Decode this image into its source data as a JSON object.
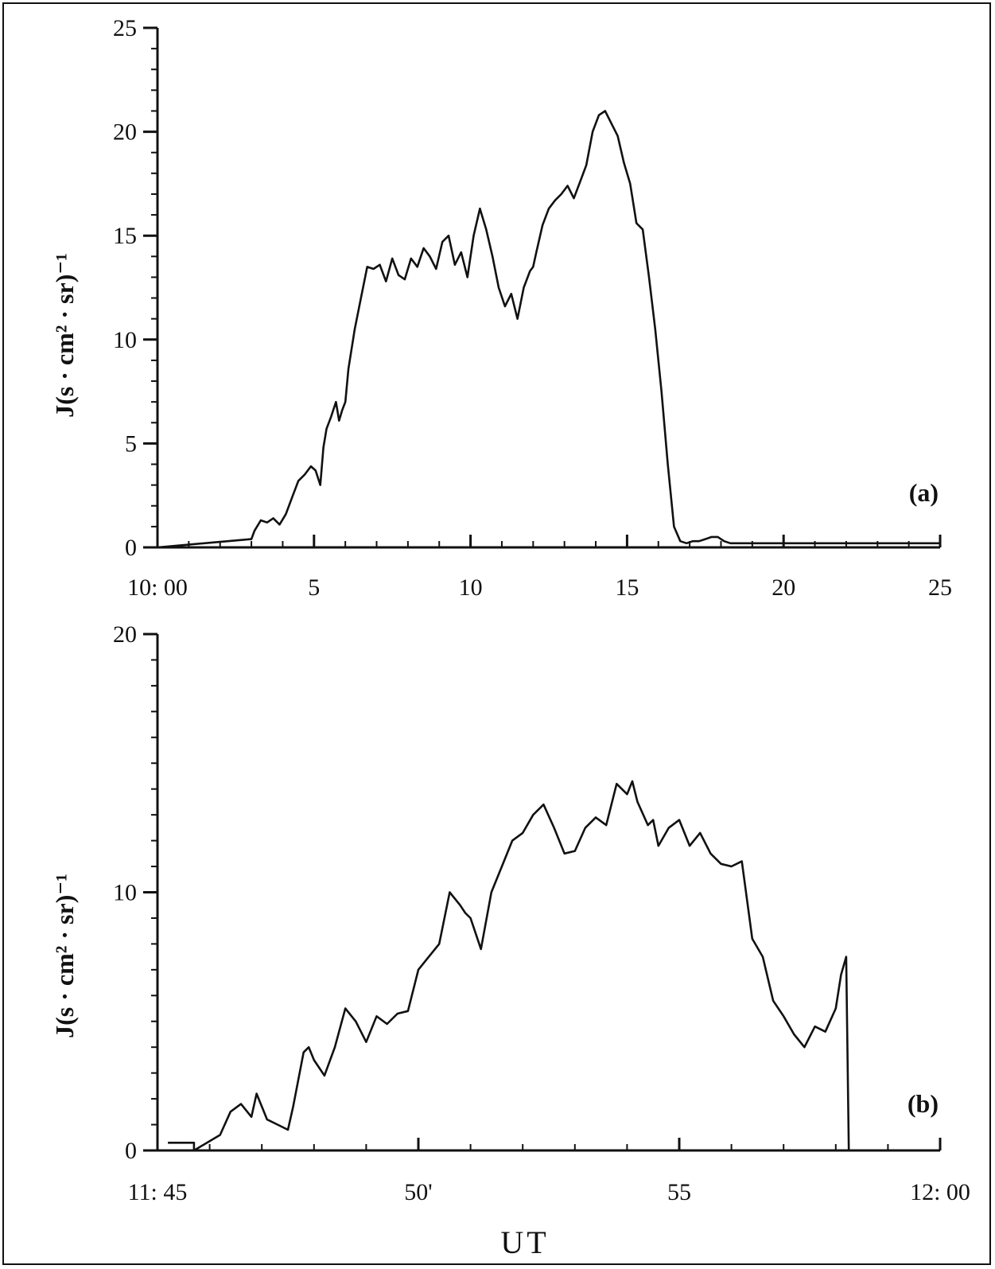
{
  "chart_data": [
    {
      "id": "a",
      "type": "line",
      "panel_label": "(a)",
      "ylabel": "J(s · cm² · sr)⁻¹",
      "xlabel": "",
      "xlim": [
        0,
        25
      ],
      "ylim": [
        0,
        25
      ],
      "x_ticks": [
        {
          "value": 0,
          "label": "10: 00"
        },
        {
          "value": 5,
          "label": "5"
        },
        {
          "value": 10,
          "label": "10"
        },
        {
          "value": 15,
          "label": "15"
        },
        {
          "value": 20,
          "label": "20"
        },
        {
          "value": 25,
          "label": "25"
        }
      ],
      "y_ticks": [
        {
          "value": 0,
          "label": "0"
        },
        {
          "value": 5,
          "label": "5"
        },
        {
          "value": 10,
          "label": "10"
        },
        {
          "value": 15,
          "label": "15"
        },
        {
          "value": 20,
          "label": "20"
        },
        {
          "value": 25,
          "label": "25"
        }
      ],
      "x_minor_step": 1,
      "y_minor_step": 1,
      "series": [
        {
          "x": [
            0,
            3.0,
            3.1,
            3.3,
            3.5,
            3.7,
            3.9,
            4.1,
            4.3,
            4.5,
            4.7,
            4.9,
            5.05,
            5.2,
            5.3,
            5.4,
            5.55,
            5.7,
            5.8,
            5.9,
            6.0,
            6.1,
            6.3,
            6.5,
            6.7,
            6.9,
            7.1,
            7.3,
            7.5,
            7.7,
            7.9,
            8.1,
            8.3,
            8.5,
            8.7,
            8.9,
            9.1,
            9.3,
            9.5,
            9.7,
            9.9,
            10.1,
            10.3,
            10.5,
            10.7,
            10.9,
            11.1,
            11.3,
            11.5,
            11.7,
            11.9,
            12.0,
            12.1,
            12.3,
            12.5,
            12.7,
            12.9,
            13.1,
            13.3,
            13.5,
            13.7,
            13.9,
            14.1,
            14.3,
            14.5,
            14.7,
            14.9,
            15.1,
            15.3,
            15.5,
            15.7,
            15.9,
            16.1,
            16.3,
            16.5,
            16.7,
            16.9,
            17.1,
            17.3,
            17.5,
            17.7,
            17.9,
            18.1,
            18.3,
            18.5,
            18.7,
            18.9,
            19.1,
            19.3,
            19.5,
            20.0,
            22.0,
            25.0
          ],
          "y": [
            0,
            0.4,
            0.8,
            1.3,
            1.2,
            1.4,
            1.1,
            1.6,
            2.4,
            3.2,
            3.5,
            3.9,
            3.7,
            3.0,
            4.8,
            5.7,
            6.3,
            7.0,
            6.1,
            6.6,
            7.0,
            8.6,
            10.5,
            12.0,
            13.5,
            13.4,
            13.6,
            12.8,
            13.9,
            13.1,
            12.9,
            13.9,
            13.5,
            14.4,
            14.0,
            13.4,
            14.7,
            15.0,
            13.6,
            14.2,
            13.0,
            15.0,
            16.3,
            15.3,
            14.0,
            12.5,
            11.6,
            12.2,
            11.0,
            12.5,
            13.3,
            13.5,
            14.2,
            15.5,
            16.3,
            16.7,
            17.0,
            17.4,
            16.8,
            17.6,
            18.4,
            20.0,
            20.8,
            21.0,
            20.4,
            19.8,
            18.5,
            17.5,
            15.6,
            15.3,
            13.0,
            10.5,
            7.5,
            4.0,
            1.0,
            0.3,
            0.2,
            0.3,
            0.3,
            0.4,
            0.5,
            0.5,
            0.3,
            0.2,
            0.2,
            0.2,
            0.2,
            0.2,
            0.2,
            0.2,
            0.2,
            0.2,
            0.2
          ]
        }
      ]
    },
    {
      "id": "b",
      "type": "line",
      "panel_label": "(b)",
      "ylabel": "J(s · cm² · sr)⁻¹",
      "xlabel": "UT",
      "xlim": [
        45,
        60
      ],
      "ylim": [
        0,
        20
      ],
      "x_ticks": [
        {
          "value": 45,
          "label": "11: 45"
        },
        {
          "value": 50,
          "label": "50'"
        },
        {
          "value": 55,
          "label": "55"
        },
        {
          "value": 60,
          "label": "12: 00"
        }
      ],
      "y_ticks": [
        {
          "value": 0,
          "label": "0"
        },
        {
          "value": 10,
          "label": "10"
        },
        {
          "value": 20,
          "label": "20"
        }
      ],
      "x_minor_step": 1,
      "y_minor_step": 1,
      "series": [
        {
          "x": [
            45.2,
            45.7,
            45.7,
            46.2,
            46.4,
            46.6,
            46.8,
            46.9,
            47.1,
            47.3,
            47.5,
            47.6,
            47.8,
            47.9,
            48.0,
            48.2,
            48.4,
            48.6,
            48.8,
            49.0,
            49.2,
            49.4,
            49.6,
            49.8,
            50.0,
            50.2,
            50.4,
            50.6,
            50.8,
            50.9,
            51.0,
            51.2,
            51.4,
            51.6,
            51.8,
            52.0,
            52.2,
            52.4,
            52.6,
            52.8,
            53.0,
            53.2,
            53.4,
            53.6,
            53.8,
            54.0,
            54.1,
            54.2,
            54.4,
            54.5,
            54.6,
            54.8,
            55.0,
            55.2,
            55.4,
            55.6,
            55.8,
            56.0,
            56.2,
            56.4,
            56.6,
            56.8,
            57.0,
            57.2,
            57.4,
            57.6,
            57.8,
            58.0,
            58.1,
            58.2,
            58.25
          ],
          "y": [
            0.3,
            0.3,
            0.0,
            0.6,
            1.5,
            1.8,
            1.3,
            2.2,
            1.2,
            1.0,
            0.8,
            1.7,
            3.8,
            4.0,
            3.5,
            2.9,
            4.0,
            5.5,
            5.0,
            4.2,
            5.2,
            4.9,
            5.3,
            5.4,
            7.0,
            7.5,
            8.0,
            10.0,
            9.5,
            9.2,
            9.0,
            7.8,
            10.0,
            11.0,
            12.0,
            12.3,
            13.0,
            13.4,
            12.5,
            11.5,
            11.6,
            12.5,
            12.9,
            12.6,
            14.2,
            13.8,
            14.3,
            13.5,
            12.6,
            12.8,
            11.8,
            12.5,
            12.8,
            11.8,
            12.3,
            11.5,
            11.1,
            11.0,
            11.2,
            8.2,
            7.5,
            5.8,
            5.2,
            4.5,
            4.0,
            4.8,
            4.6,
            5.5,
            6.8,
            7.5,
            0.0
          ]
        }
      ]
    }
  ]
}
